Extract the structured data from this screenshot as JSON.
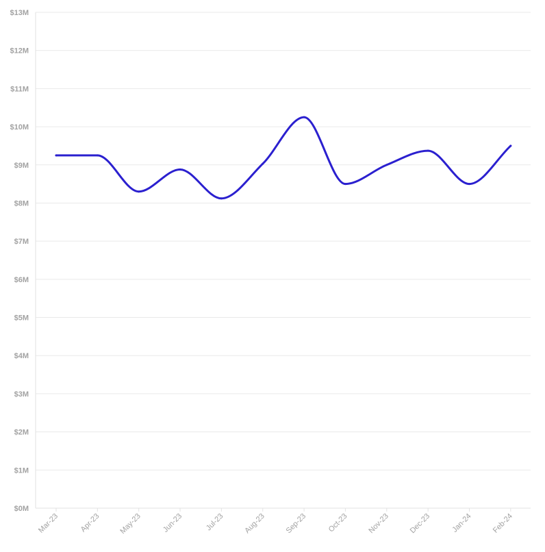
{
  "chart_data": {
    "type": "line",
    "categories": [
      "Mar-23",
      "Apr-23",
      "May-23",
      "Jun-23",
      "Jul-23",
      "Aug-23",
      "Sep-23",
      "Oct-23",
      "Nov-23",
      "Dec-23",
      "Jan-24",
      "Feb-24"
    ],
    "series": [
      {
        "values": [
          9.25,
          9.25,
          8.3,
          8.88,
          8.12,
          9.03,
          10.25,
          8.5,
          9.0,
          9.37,
          8.5,
          9.5
        ]
      }
    ],
    "y_tick_labels": [
      "$0M",
      "$1M",
      "$2M",
      "$3M",
      "$4M",
      "$5M",
      "$6M",
      "$7M",
      "$8M",
      "$9M",
      "$10M",
      "$11M",
      "$12M",
      "$13M"
    ],
    "ylim": [
      0,
      13
    ],
    "y_unit": "millions USD",
    "grid": "horizontal",
    "line_style": "smooth",
    "colors": {
      "line": "#2b20cf",
      "grid": "#e9e9e9",
      "axis": "#e2e2e2",
      "tick_text": "#a2a2a2"
    }
  }
}
